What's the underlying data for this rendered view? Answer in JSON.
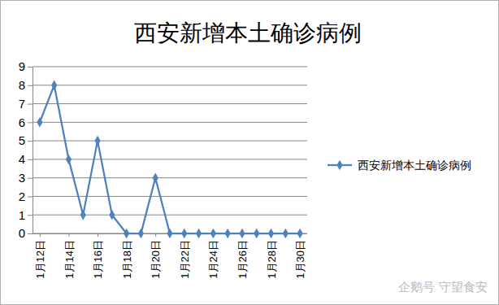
{
  "chart_data": {
    "type": "line",
    "title": "西安新增本土确诊病例",
    "categories": [
      "1月12日",
      null,
      "1月14日",
      null,
      "1月16日",
      null,
      "1月18日",
      null,
      "1月20日",
      null,
      "1月22日",
      null,
      "1月24日",
      null,
      "1月26日",
      null,
      "1月28日",
      null,
      "1月30日"
    ],
    "series": [
      {
        "name": "西安新增本土确诊病例",
        "color": "#4f81bd",
        "marker": "diamond",
        "values": [
          6,
          8,
          4,
          1,
          5,
          1,
          0,
          0,
          3,
          0,
          0,
          0,
          0,
          0,
          0,
          0,
          0,
          0,
          0
        ]
      }
    ],
    "ylim": [
      0,
      9
    ],
    "yticks": [
      0,
      1,
      2,
      3,
      4,
      5,
      6,
      7,
      8,
      9
    ],
    "grid": true,
    "legend": "right",
    "annotations": [
      "企鹅号 守望食安"
    ]
  }
}
